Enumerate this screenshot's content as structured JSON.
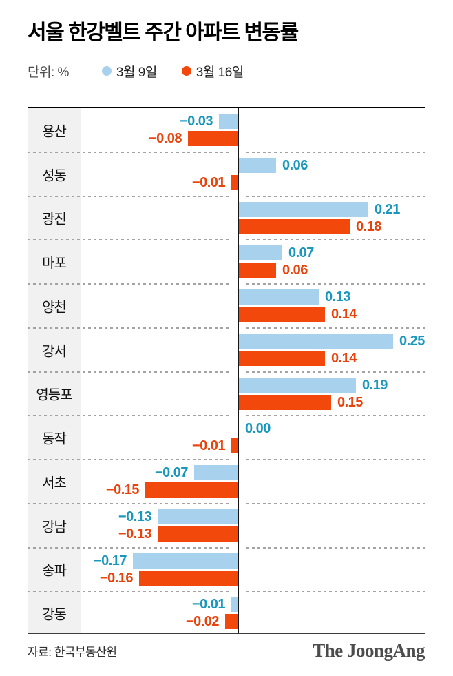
{
  "title": "서울 한강벨트 주간 아파트 변동률",
  "legend": {
    "unit_label": "단위: %",
    "series": [
      {
        "label": "3월 9일",
        "color": "#a7d1ed"
      },
      {
        "label": "3월 16일",
        "color": "#f3480c"
      }
    ]
  },
  "chart_data": {
    "type": "bar",
    "orientation": "horizontal",
    "title": "서울 한강벨트 주간 아파트 변동률",
    "unit": "%",
    "categories": [
      "용산",
      "성동",
      "광진",
      "마포",
      "양천",
      "강서",
      "영등포",
      "동작",
      "서초",
      "강남",
      "송파",
      "강동"
    ],
    "series": [
      {
        "name": "3월 9일",
        "bar_color": "#a7d1ed",
        "label_color": "#1a97bc",
        "values": [
          -0.03,
          0.06,
          0.21,
          0.07,
          0.13,
          0.25,
          0.19,
          0.0,
          -0.07,
          -0.13,
          -0.17,
          -0.01
        ]
      },
      {
        "name": "3월 16일",
        "bar_color": "#f3480c",
        "label_color": "#e9430d",
        "values": [
          -0.08,
          -0.01,
          0.18,
          0.06,
          0.14,
          0.14,
          0.15,
          -0.01,
          -0.15,
          -0.13,
          -0.16,
          -0.02
        ]
      }
    ],
    "xlim": [
      -0.34,
      0.3
    ],
    "grid": "dashed-row-dividers",
    "legend_position": "top",
    "value_labels": "outside-bar-end"
  },
  "footer": {
    "source": "자료: 한국부동산원",
    "brand": "The JoongAng"
  }
}
